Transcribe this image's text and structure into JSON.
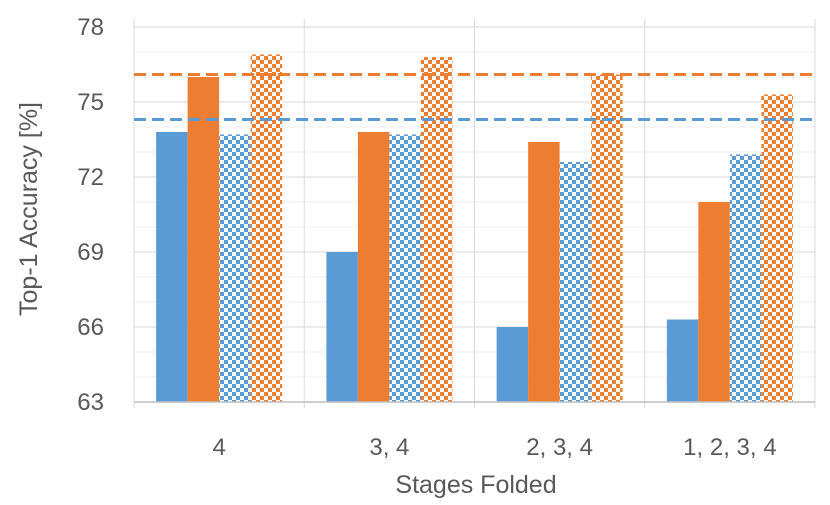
{
  "chart_data": {
    "type": "bar",
    "title": "",
    "xlabel": "Stages Folded",
    "ylabel": "Top-1 Accuracy [%]",
    "ylim": [
      63,
      78
    ],
    "yticks": [
      63,
      66,
      69,
      72,
      75,
      78
    ],
    "grid": true,
    "categories": [
      "4",
      "3, 4",
      "2, 3, 4",
      "1, 2, 3, 4"
    ],
    "series": [
      {
        "color": "#5B9BD5",
        "pattern": "solid",
        "values": [
          73.8,
          69.0,
          66.0,
          66.3
        ]
      },
      {
        "color": "#ED7D31",
        "pattern": "solid",
        "values": [
          76.0,
          73.8,
          73.4,
          71.0
        ]
      },
      {
        "color": "#5B9BD5",
        "pattern": "checkerboard",
        "values": [
          73.7,
          73.7,
          72.6,
          72.9
        ]
      },
      {
        "color": "#ED7D31",
        "pattern": "checkerboard",
        "values": [
          76.9,
          76.8,
          76.1,
          75.3
        ]
      }
    ],
    "reference_lines": [
      {
        "color": "#5B9BD5",
        "style": "dashed",
        "value": 74.3
      },
      {
        "color": "#ED7D31",
        "style": "dashed",
        "value": 76.1
      }
    ]
  }
}
